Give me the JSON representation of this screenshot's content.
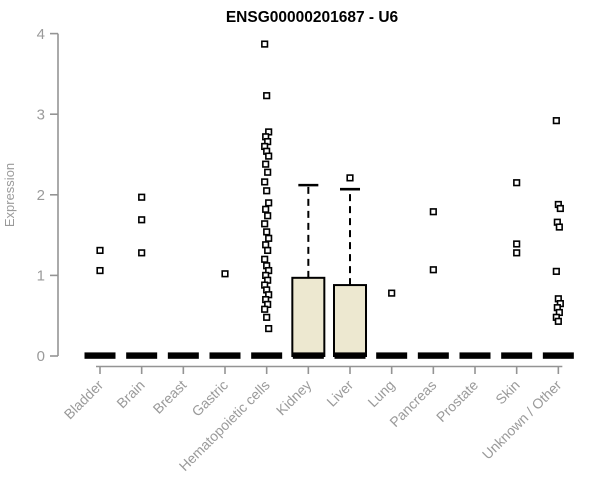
{
  "chart_data": {
    "type": "boxplot",
    "title": "ENSG00000201687 - U6",
    "ylabel": "Expression",
    "xlabel": "",
    "ylim": [
      0,
      4
    ],
    "yticks": [
      0,
      1,
      2,
      3,
      4
    ],
    "grid": false,
    "legend": "none",
    "colors": {
      "box_fill": "#EDE8D0",
      "box_stroke": "#000000",
      "axis": "#949494",
      "tick_label": "#9a9a9a",
      "title": "#000000",
      "background": "#ffffff",
      "point_fill": "#ffffff",
      "point_stroke": "#000000"
    },
    "categories": [
      "Bladder",
      "Brain",
      "Breast",
      "Gastric",
      "Hematopoietic cells",
      "Kidney",
      "Liver",
      "Lung",
      "Pancreas",
      "Prostate",
      "Skin",
      "Unknown / Other"
    ],
    "boxes": [
      {
        "category": "Bladder",
        "q1": 0,
        "median": 0,
        "q3": 0,
        "whisker_low": 0,
        "whisker_high": 0,
        "outliers": [
          1.31,
          1.06
        ]
      },
      {
        "category": "Brain",
        "q1": 0,
        "median": 0,
        "q3": 0,
        "whisker_low": 0,
        "whisker_high": 0,
        "outliers": [
          1.97,
          1.69,
          1.28
        ]
      },
      {
        "category": "Breast",
        "q1": 0,
        "median": 0,
        "q3": 0,
        "whisker_low": 0,
        "whisker_high": 0,
        "outliers": []
      },
      {
        "category": "Gastric",
        "q1": 0,
        "median": 0,
        "q3": 0,
        "whisker_low": 0,
        "whisker_high": 0,
        "outliers": [
          1.02
        ]
      },
      {
        "category": "Hematopoietic cells",
        "q1": 0,
        "median": 0,
        "q3": 0,
        "whisker_low": 0,
        "whisker_high": 0,
        "outliers": [
          3.87,
          3.23,
          2.78,
          2.72,
          2.66,
          2.6,
          2.54,
          2.48,
          2.38,
          2.28,
          2.16,
          2.05,
          1.9,
          1.82,
          1.74,
          1.64,
          1.54,
          1.46,
          1.38,
          1.31,
          1.2,
          1.12,
          1.06,
          1.0,
          0.94,
          0.88,
          0.82,
          0.76,
          0.7,
          0.64,
          0.58,
          0.48,
          0.34
        ]
      },
      {
        "category": "Kidney",
        "q1": 0,
        "median": 0,
        "q3": 0.97,
        "whisker_low": 0,
        "whisker_high": 2.12,
        "outliers": []
      },
      {
        "category": "Liver",
        "q1": 0,
        "median": 0,
        "q3": 0.88,
        "whisker_low": 0,
        "whisker_high": 2.07,
        "outliers": [
          2.21
        ]
      },
      {
        "category": "Lung",
        "q1": 0,
        "median": 0,
        "q3": 0,
        "whisker_low": 0,
        "whisker_high": 0,
        "outliers": [
          0.78
        ]
      },
      {
        "category": "Pancreas",
        "q1": 0,
        "median": 0,
        "q3": 0,
        "whisker_low": 0,
        "whisker_high": 0,
        "outliers": [
          1.79,
          1.07
        ]
      },
      {
        "category": "Prostate",
        "q1": 0,
        "median": 0,
        "q3": 0,
        "whisker_low": 0,
        "whisker_high": 0,
        "outliers": []
      },
      {
        "category": "Skin",
        "q1": 0,
        "median": 0,
        "q3": 0,
        "whisker_low": 0,
        "whisker_high": 0,
        "outliers": [
          2.15,
          1.39,
          1.28
        ]
      },
      {
        "category": "Unknown / Other",
        "q1": 0,
        "median": 0,
        "q3": 0,
        "whisker_low": 0,
        "whisker_high": 0,
        "outliers": [
          2.92,
          1.88,
          1.83,
          1.66,
          1.6,
          1.05,
          0.71,
          0.65,
          0.6,
          0.54,
          0.48,
          0.43
        ]
      }
    ]
  }
}
